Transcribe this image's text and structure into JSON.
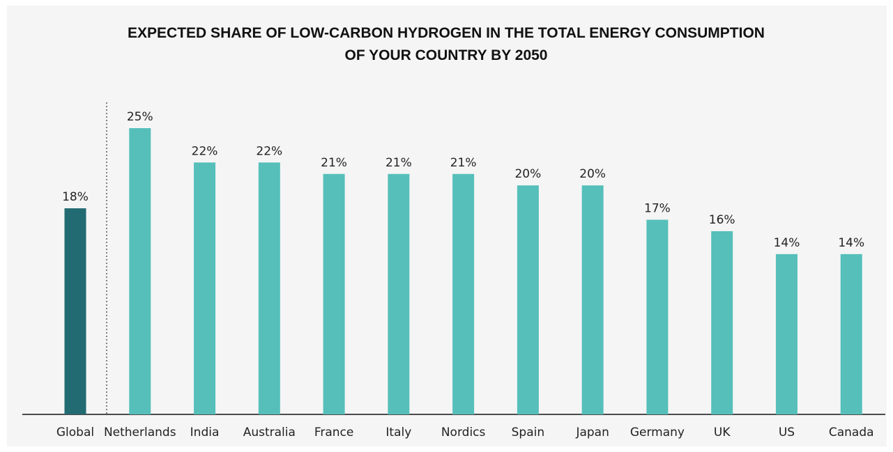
{
  "chart_data": {
    "type": "bar",
    "title": "EXPECTED SHARE OF LOW-CARBON HYDROGEN IN THE TOTAL ENERGY CONSUMPTION OF YOUR COUNTRY BY 2050",
    "categories": [
      "Global",
      "Netherlands",
      "India",
      "Australia",
      "France",
      "Italy",
      "Nordics",
      "Spain",
      "Japan",
      "Germany",
      "UK",
      "US",
      "Canada"
    ],
    "values": [
      18,
      25,
      22,
      22,
      21,
      21,
      21,
      20,
      20,
      17,
      16,
      14,
      14
    ],
    "value_labels": [
      "18%",
      "25%",
      "22%",
      "22%",
      "21%",
      "21%",
      "21%",
      "20%",
      "20%",
      "17%",
      "16%",
      "14%",
      "14%"
    ],
    "colors": [
      "#236b73",
      "#56bfba",
      "#56bfba",
      "#56bfba",
      "#56bfba",
      "#56bfba",
      "#56bfba",
      "#56bfba",
      "#56bfba",
      "#56bfba",
      "#56bfba",
      "#56bfba",
      "#56bfba"
    ]
  }
}
